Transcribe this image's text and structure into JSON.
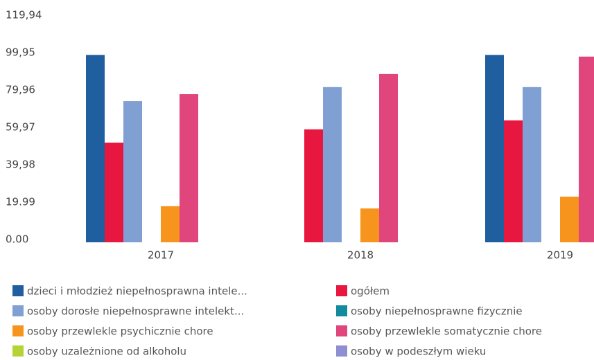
{
  "chart_data": {
    "type": "bar",
    "categories": [
      "2017",
      "2018",
      "2019"
    ],
    "series": [
      {
        "name": "dzieci i młodzież niepełnosprawna intele...",
        "color": "#1f5fa0",
        "values": [
          100.2,
          null,
          100.2
        ]
      },
      {
        "name": "ogółem",
        "color": "#e8173f",
        "values": [
          53.3,
          60.4,
          65.2
        ]
      },
      {
        "name": "osoby dorosłe niepełnosprawne intelekt...",
        "color": "#809fd3",
        "values": [
          75.5,
          83.0,
          83.0
        ]
      },
      {
        "name": "osoby niepełnosprawne fizycznie",
        "color": "#138a9e",
        "values": [
          null,
          null,
          null
        ]
      },
      {
        "name": "osoby przewlekle psychicznie chore",
        "color": "#f7941d",
        "values": [
          19.3,
          18.1,
          24.4
        ]
      },
      {
        "name": "osoby przewlekle somatycznie chore",
        "color": "#e0457b",
        "values": [
          79.2,
          90.0,
          99.3
        ]
      },
      {
        "name": "osoby uzależnione od alkoholu",
        "color": "#b5d334",
        "values": [
          null,
          null,
          null
        ]
      },
      {
        "name": "osoby w podeszłym wieku",
        "color": "#8d8fd1",
        "values": [
          null,
          null,
          null
        ]
      }
    ],
    "ylim": [
      0,
      119.94
    ],
    "yticks": [
      {
        "value": 0,
        "label": "0.00"
      },
      {
        "value": 19.99,
        "label": "19.99"
      },
      {
        "value": 39.98,
        "label": "39,98"
      },
      {
        "value": 59.97,
        "label": "59,97"
      },
      {
        "value": 79.96,
        "label": "79,96"
      },
      {
        "value": 99.95,
        "label": "99,95"
      },
      {
        "value": 119.94,
        "label": "119,94"
      }
    ],
    "grid": false
  }
}
